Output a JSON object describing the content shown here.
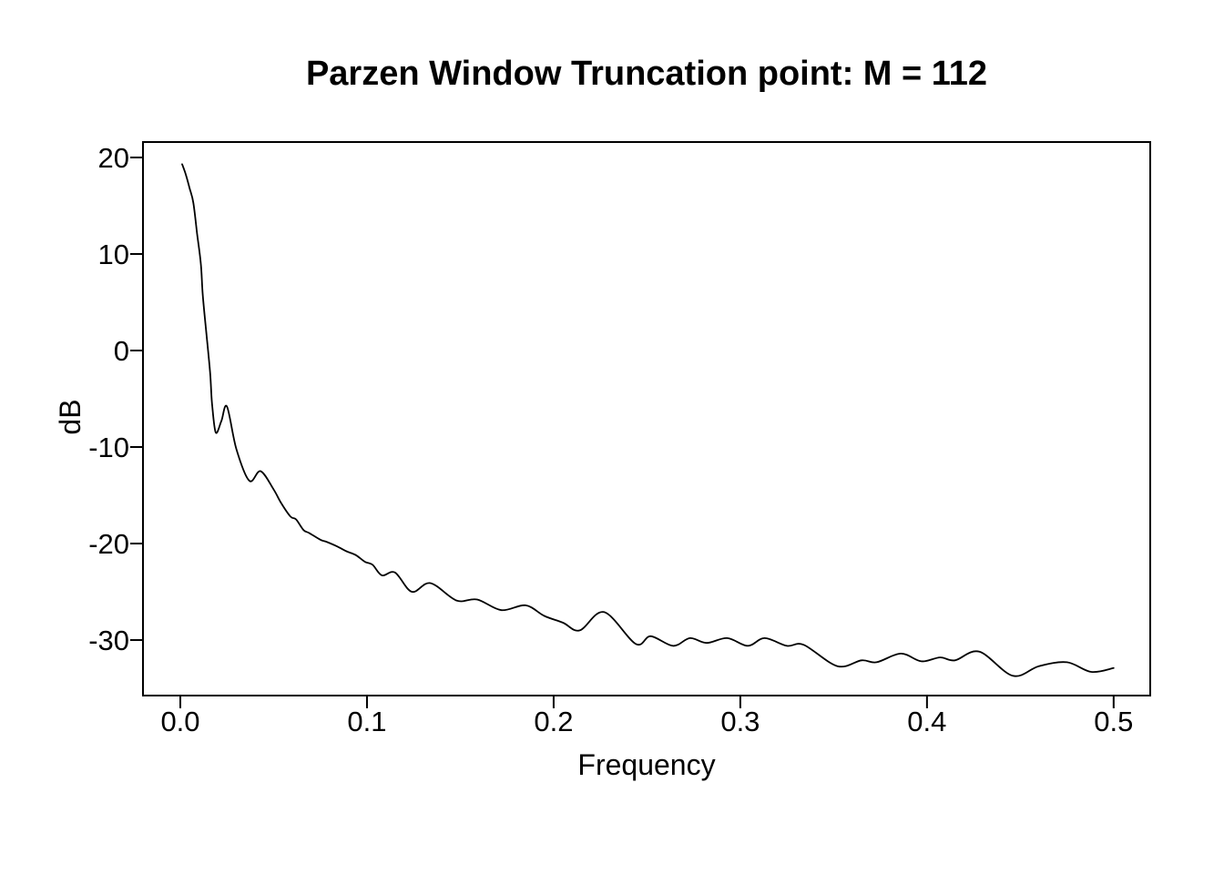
{
  "figure": {
    "background_color": "#ffffff",
    "line_color": "#000000",
    "axis_color": "#000000"
  },
  "chart_data": {
    "type": "line",
    "title": "Parzen Window Truncation point: M = 112",
    "xlabel": "Frequency",
    "ylabel": "dB",
    "grid": false,
    "legend": null,
    "xlim": [
      -0.02,
      0.5196
    ],
    "ylim": [
      -35.75,
      21.6
    ],
    "x_ticks": {
      "values": [
        0.0,
        0.1,
        0.2,
        0.3,
        0.4,
        0.5
      ],
      "labels": [
        "0.0",
        "0.1",
        "0.2",
        "0.3",
        "0.4",
        "0.5"
      ]
    },
    "y_ticks": {
      "values": [
        20,
        10,
        0,
        -10,
        -20,
        -30
      ],
      "labels": [
        "20",
        "10",
        "0",
        "-10",
        "-20",
        "-30"
      ]
    },
    "series": [
      {
        "x": [
          0.001,
          0.003,
          0.005,
          0.007,
          0.009,
          0.011,
          0.012,
          0.014,
          0.016,
          0.017,
          0.019,
          0.022,
          0.025,
          0.03,
          0.037,
          0.043,
          0.05,
          0.054,
          0.059,
          0.062,
          0.066,
          0.069,
          0.075,
          0.078,
          0.084,
          0.089,
          0.094,
          0.099,
          0.103,
          0.108,
          0.115,
          0.124,
          0.134,
          0.148,
          0.159,
          0.172,
          0.185,
          0.195,
          0.205,
          0.214,
          0.227,
          0.244,
          0.252,
          0.264,
          0.273,
          0.282,
          0.293,
          0.304,
          0.313,
          0.325,
          0.334,
          0.352,
          0.365,
          0.373,
          0.386,
          0.397,
          0.407,
          0.415,
          0.428,
          0.446,
          0.46,
          0.475,
          0.488,
          0.5
        ],
        "y": [
          19.3,
          18.2,
          16.8,
          15.3,
          12.1,
          9.0,
          5.8,
          1.7,
          -2.4,
          -5.5,
          -8.5,
          -7.3,
          -5.8,
          -10.2,
          -13.5,
          -12.5,
          -14.4,
          -15.8,
          -17.2,
          -17.5,
          -18.6,
          -18.9,
          -19.6,
          -19.8,
          -20.3,
          -20.8,
          -21.2,
          -21.9,
          -22.2,
          -23.3,
          -23.0,
          -25.0,
          -24.1,
          -25.9,
          -25.8,
          -26.9,
          -26.4,
          -27.5,
          -28.2,
          -29.0,
          -27.1,
          -30.4,
          -29.6,
          -30.6,
          -29.8,
          -30.3,
          -29.8,
          -30.6,
          -29.8,
          -30.6,
          -30.5,
          -32.7,
          -32.1,
          -32.3,
          -31.4,
          -32.2,
          -31.8,
          -32.1,
          -31.2,
          -33.7,
          -32.7,
          -32.3,
          -33.3,
          -32.9
        ]
      }
    ]
  }
}
